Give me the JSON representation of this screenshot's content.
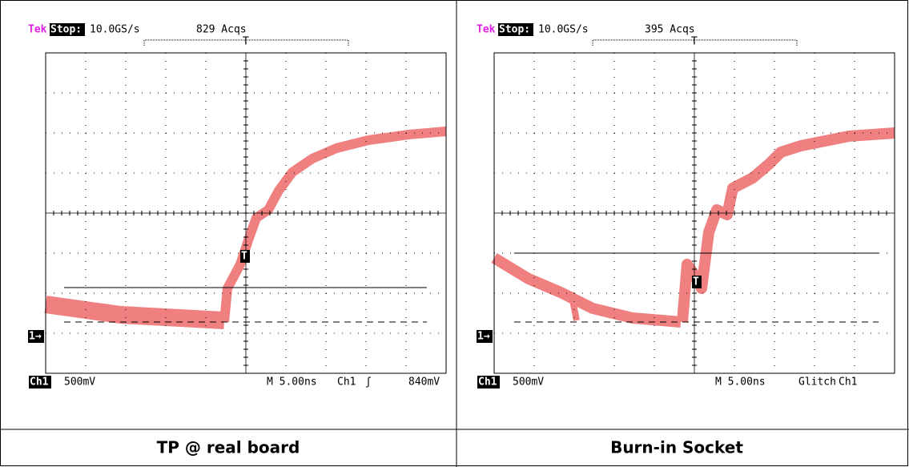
{
  "panels": [
    {
      "brand": "Tek",
      "status": "Stop:",
      "sample_rate": "10.0GS/s",
      "acquisitions": "829 Acqs",
      "trigger_marker": "T",
      "ground_marker": "1→",
      "channel": "Ch1",
      "scale": "500mV",
      "timebase": "M 5.00ns",
      "trigger_mode": "Ch1",
      "trigger_slope": "ʃ",
      "trigger_level": "840mV",
      "caption": "TP @ real board"
    },
    {
      "brand": "Tek",
      "status": "Stop:",
      "sample_rate": "10.0GS/s",
      "acquisitions": "395 Acqs",
      "trigger_marker": "T",
      "ground_marker": "1→",
      "channel": "Ch1",
      "scale": "500mV",
      "timebase": "M 5.00ns",
      "trigger_mode": "Glitch",
      "trigger_slope": "Ch1",
      "caption": "Burn-in Socket"
    }
  ]
}
